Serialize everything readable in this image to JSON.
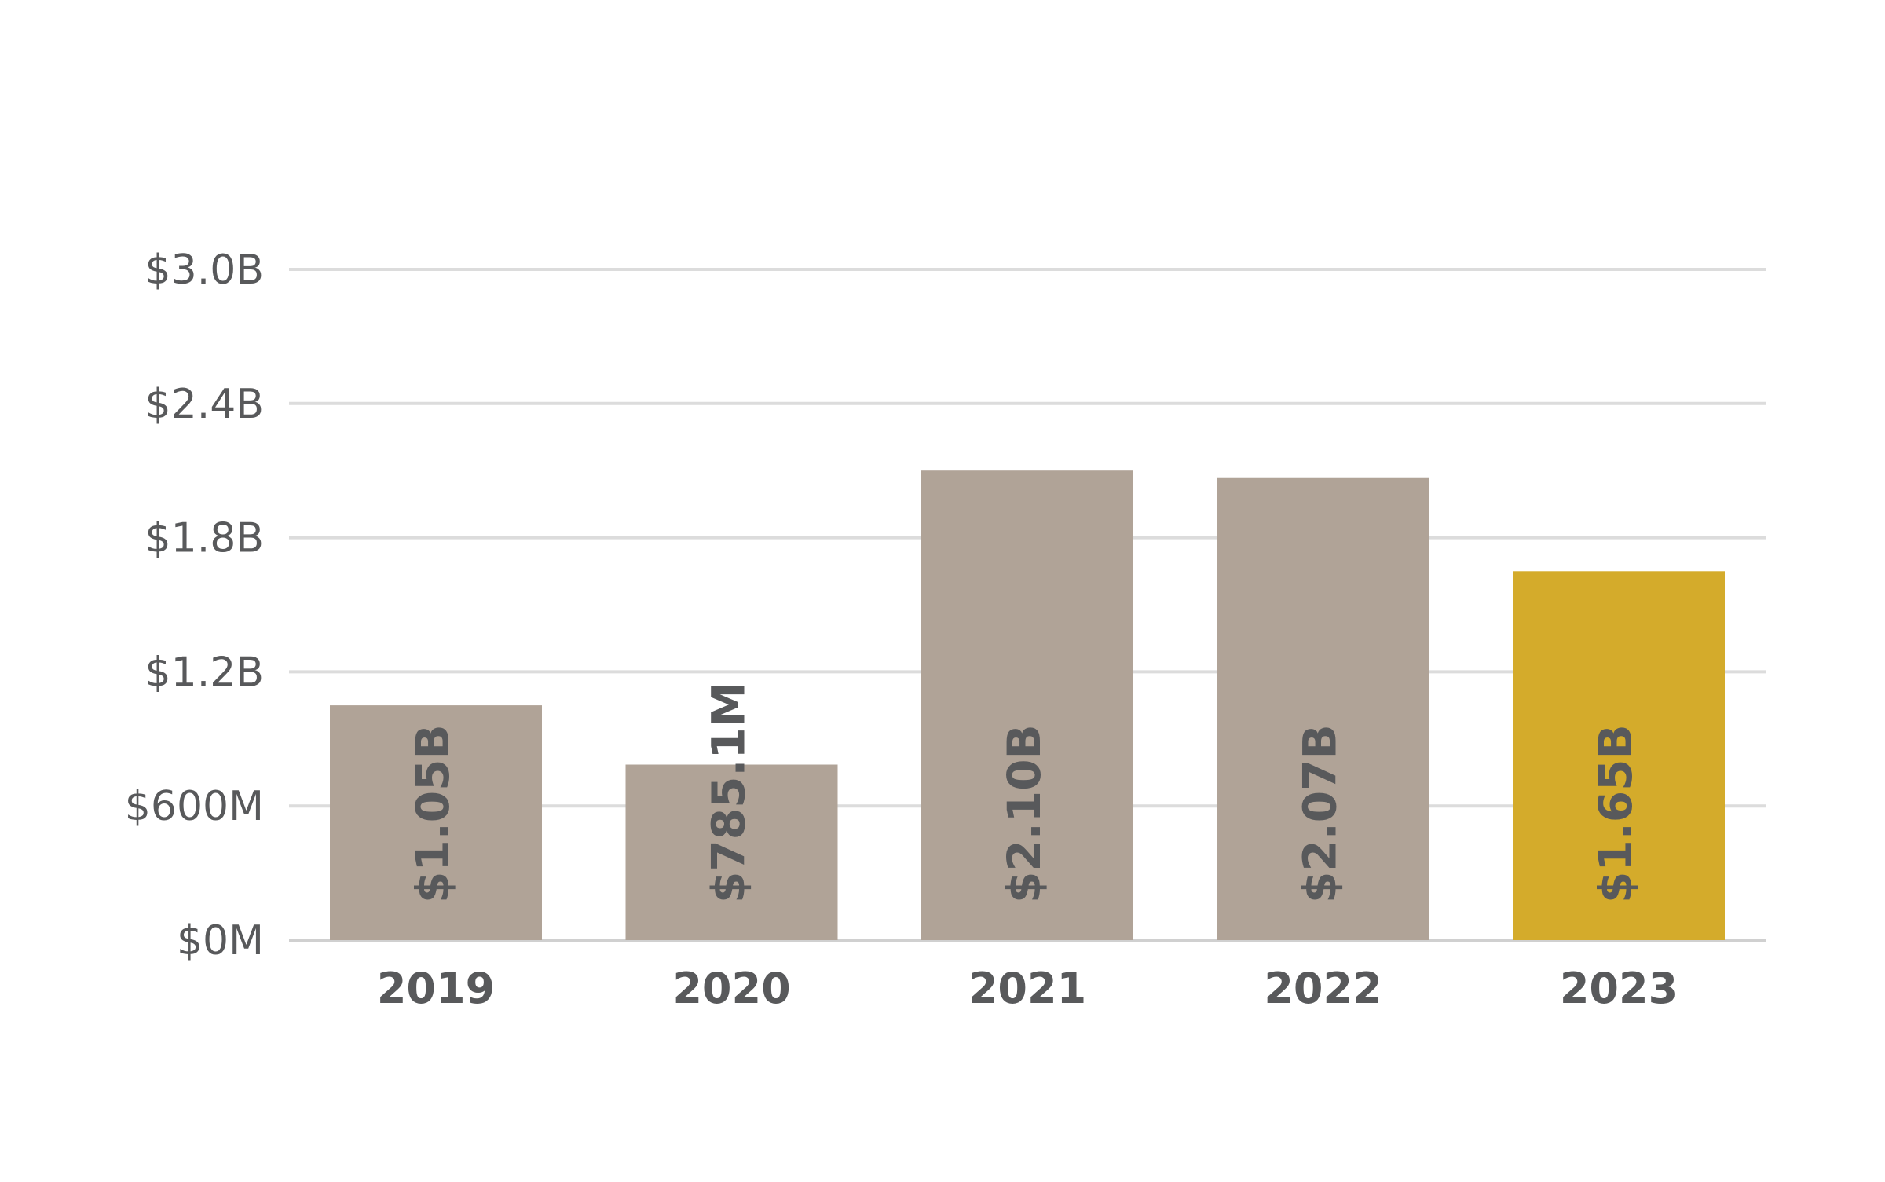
{
  "chart_data": {
    "type": "bar",
    "title": "",
    "xlabel": "",
    "ylabel": "",
    "categories": [
      "2019",
      "2020",
      "2021",
      "2022",
      "2023"
    ],
    "values": [
      1.05,
      0.7851,
      2.1,
      2.07,
      1.65
    ],
    "value_units": "billions USD",
    "data_labels": [
      "$1.05B",
      "$785.1M",
      "$2.10B",
      "$2.07B",
      "$1.65B"
    ],
    "ylim": [
      0,
      3.0
    ],
    "y_ticks": [
      0,
      0.6,
      1.2,
      1.8,
      2.4,
      3.0
    ],
    "y_tick_labels": [
      "$0M",
      "$600M",
      "$1.2B",
      "$1.8B",
      "$2.4B",
      "$3.0B"
    ],
    "grid": true,
    "legend": "none",
    "colors": {
      "default_bar": "#b0a397",
      "highlight_bar": "#d4ab2b",
      "highlight_category": "2023",
      "text": "#58595b",
      "gridline": "#dcdcdc"
    }
  }
}
